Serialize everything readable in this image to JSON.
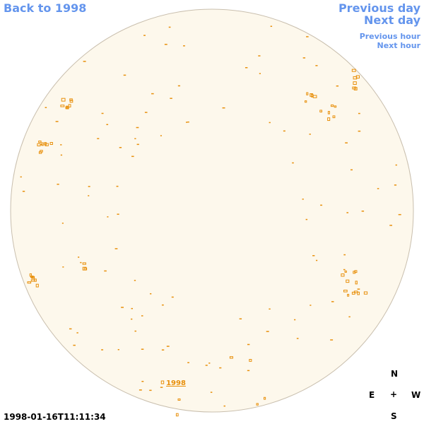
{
  "nav": {
    "back": "Back to 1998",
    "previous_day": "Previous day",
    "next_day": "Next day",
    "previous_hour": "Previous hour",
    "next_hour": "Next hour"
  },
  "disk_label": "1998",
  "timestamp": "1998-01-16T11:11:34",
  "compass": {
    "north": "N",
    "east": "E",
    "center": "+",
    "west": "W",
    "south": "S"
  }
}
